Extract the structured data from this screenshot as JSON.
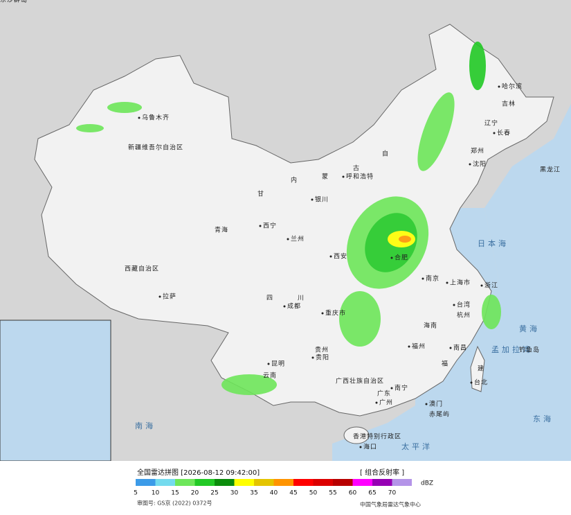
{
  "header": {
    "title": "全国雷达拼图 [2026-08-12 09:42:00]",
    "product": "[ 组合反射率 ]"
  },
  "map": {
    "labels": [
      "乌鲁木齐",
      "新疆维吾尔自治区",
      "西藏自治区",
      "拉萨",
      "青海",
      "西宁",
      "甘",
      "内",
      "蒙",
      "古",
      "自",
      "呼和浩特",
      "银川",
      "兰州",
      "西安",
      "四",
      "川",
      "成都",
      "重庆市",
      "贵州",
      "贵阳",
      "云南",
      "昆明",
      "广西壮族自治区",
      "南宁",
      "广东",
      "广州",
      "澳门",
      "香港特别行政区",
      "海口",
      "海南",
      "南昌",
      "福州",
      "福",
      "建",
      "台北",
      "台湾",
      "杭州",
      "浙江",
      "上海市",
      "南京",
      "合肥",
      "郑州",
      "沈阳",
      "辽宁",
      "长春",
      "吉林",
      "哈尔滨",
      "黑龙江",
      "日本海",
      "黄海",
      "东海",
      "太平洋",
      "南海",
      "孟加拉湾",
      "钓鱼岛",
      "赤尾屿",
      "东沙群岛"
    ]
  },
  "legend": {
    "unit": "dBZ",
    "levels": [
      {
        "value": 5,
        "color": "#3c9be8"
      },
      {
        "value": 10,
        "color": "#74dbee"
      },
      {
        "value": 15,
        "color": "#6ee65a"
      },
      {
        "value": 20,
        "color": "#22c925"
      },
      {
        "value": 25,
        "color": "#0b8c0b"
      },
      {
        "value": 30,
        "color": "#ffff00"
      },
      {
        "value": 35,
        "color": "#e4c400"
      },
      {
        "value": 40,
        "color": "#ff9400"
      },
      {
        "value": 45,
        "color": "#ff0000"
      },
      {
        "value": 50,
        "color": "#dc0000"
      },
      {
        "value": 55,
        "color": "#b80000"
      },
      {
        "value": 60,
        "color": "#ff00ff"
      },
      {
        "value": 65,
        "color": "#9600b4"
      },
      {
        "value": 70,
        "color": "#b494e8"
      }
    ]
  },
  "footer": {
    "approval": "审图号: GS京 (2022) 0372号",
    "source": "中国气象局雷达气象中心"
  }
}
